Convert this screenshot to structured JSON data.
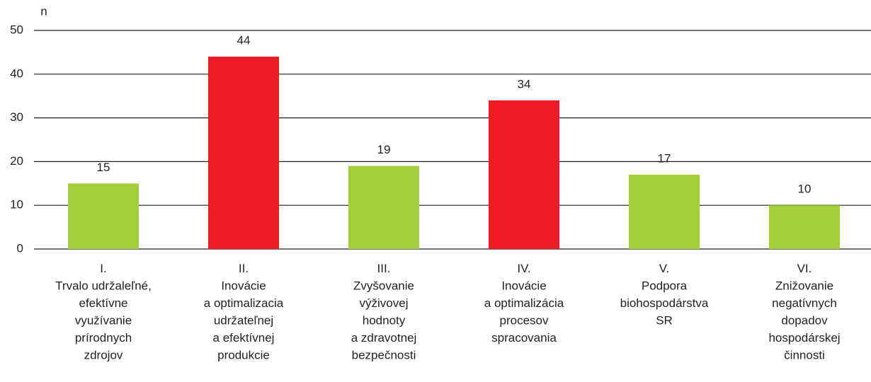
{
  "chart_data": {
    "type": "bar",
    "y_label": "n",
    "categories": [
      [
        "I.",
        "Trvalo udržaleľné,",
        "efektívne",
        "využívanie",
        "prírodnych",
        "zdrojov"
      ],
      [
        "II.",
        "Inovácie",
        "a optimalizacia",
        "udržateľnej",
        "a efektívnej",
        "produkcie"
      ],
      [
        "III.",
        "Zvyšovanie",
        "výživovej",
        "hodnoty",
        "a zdravotnej",
        "bezpečnosti"
      ],
      [
        "IV.",
        "Inovácie",
        "a optimalizácia",
        "procesov",
        "spracovania"
      ],
      [
        "V.",
        "Podpora",
        "biohospodárstva",
        "SR"
      ],
      [
        "VI.",
        "Znižovanie",
        "negatívnych",
        "dopadov",
        "hospodárskej",
        "činnosti"
      ]
    ],
    "values": [
      15,
      44,
      19,
      34,
      17,
      10
    ],
    "colors": [
      "#a6ce39",
      "#ed1c24",
      "#a6ce39",
      "#ed1c24",
      "#a6ce39",
      "#a6ce39"
    ],
    "ylim": [
      0,
      50
    ],
    "yticks": [
      0,
      10,
      20,
      30,
      40,
      50
    ],
    "grid": true
  }
}
